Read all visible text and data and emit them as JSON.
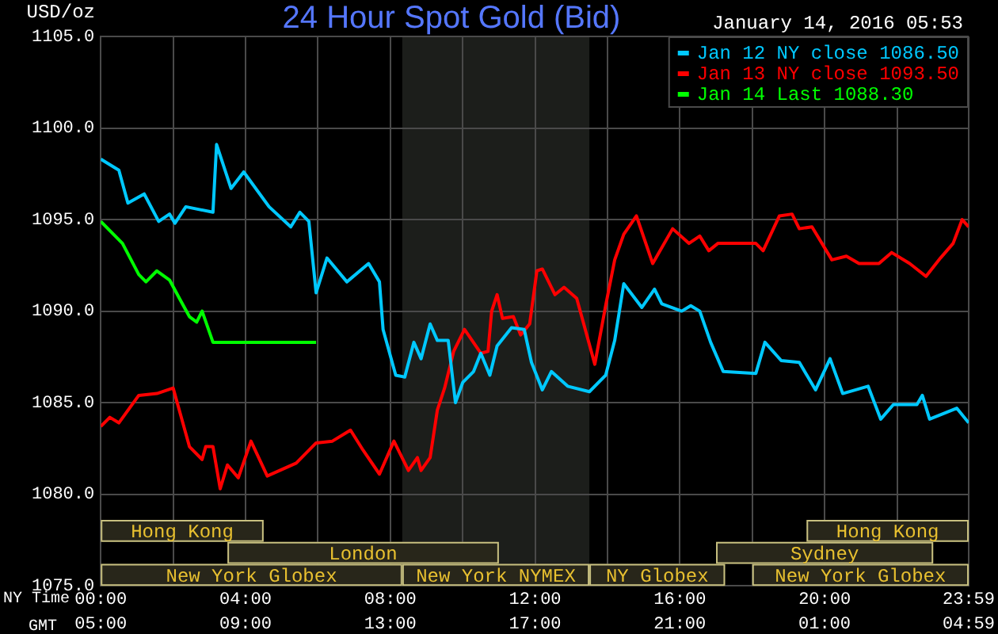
{
  "chart_data": {
    "type": "line",
    "title": "24 Hour Spot Gold (Bid)",
    "subtitle": "January 14, 2016 05:53",
    "ylabel": "USD/oz",
    "xlabel": "NY Time",
    "x2label": "GMT",
    "xlim": [
      0,
      23.98
    ],
    "ylim": [
      1075,
      1105
    ],
    "xticks": [
      {
        "value": 0,
        "label": "00:00"
      },
      {
        "value": 2,
        "label": null
      },
      {
        "value": 4,
        "label": "04:00"
      },
      {
        "value": 6,
        "label": null
      },
      {
        "value": 8,
        "label": "08:00"
      },
      {
        "value": 10,
        "label": null
      },
      {
        "value": 12,
        "label": "12:00"
      },
      {
        "value": 14,
        "label": null
      },
      {
        "value": 16,
        "label": "16:00"
      },
      {
        "value": 18,
        "label": null
      },
      {
        "value": 20,
        "label": "20:00"
      },
      {
        "value": 22,
        "label": null
      },
      {
        "value": 23.98,
        "label": "23:59"
      }
    ],
    "x2lim": [
      "2016-01-14T05:00",
      "2016-01-15T04:59"
    ],
    "x2ticks": [
      {
        "value": "2016-01-14T05:00",
        "label": "05:00"
      },
      {
        "value": "2016-01-14T09:00",
        "label": "09:00"
      },
      {
        "value": "2016-01-14T13:00",
        "label": "13:00"
      },
      {
        "value": "2016-01-14T17:00",
        "label": "17:00"
      },
      {
        "value": "2016-01-14T21:00",
        "label": "21:00"
      },
      {
        "value": "2016-01-15T01:00",
        "label": "01:00"
      },
      {
        "value": "2016-01-15T04:59",
        "label": "04:59"
      }
    ],
    "yticks": [
      {
        "value": 1075,
        "label": "1075.0"
      },
      {
        "value": 1080,
        "label": "1080.0"
      },
      {
        "value": 1085,
        "label": "1085.0"
      },
      {
        "value": 1090,
        "label": "1090.0"
      },
      {
        "value": 1095,
        "label": "1095.0"
      },
      {
        "value": 1100,
        "label": "1100.0"
      },
      {
        "value": 1105,
        "label": "1105.0"
      }
    ],
    "grid": true,
    "legend": "top right",
    "marker": "none",
    "line_style": "solid",
    "bands": [
      {
        "axis": "x",
        "from": 8.33,
        "to": 13.5,
        "color": "#1c1e1b"
      },
      {
        "axis": "x",
        "from": 0,
        "to": 4.5,
        "label": "Hong Kong",
        "color": "#c8c080"
      },
      {
        "axis": "x",
        "from": 19.5,
        "to": 23.98,
        "label": "Hong Kong",
        "color": "#c8c080"
      },
      {
        "axis": "x",
        "from": 3.5,
        "to": 11,
        "label": "London",
        "color": "#c8c080"
      },
      {
        "axis": "x",
        "from": 17,
        "to": 23,
        "label": "Sydney",
        "color": "#c8c080"
      },
      {
        "axis": "x",
        "from": 0,
        "to": 8.33,
        "label": "New York Globex",
        "color": "#c8c080"
      },
      {
        "axis": "x",
        "from": 8.33,
        "to": 13.5,
        "label": "New York NYMEX",
        "color": "#c8c080"
      },
      {
        "axis": "x",
        "from": 13.5,
        "to": 17.25,
        "label": "NY Globex",
        "color": "#c8c080"
      },
      {
        "axis": "x",
        "from": 18,
        "to": 23.98,
        "label": "New York Globex",
        "color": "#c8c080"
      }
    ],
    "series": [
      {
        "name": "Jan 12 NY close 1086.50",
        "color": "#00c8ff",
        "x": [
          0,
          0.5,
          0.75,
          1.2,
          1.6,
          1.9,
          2.05,
          2.35,
          3.1,
          3.2,
          3.6,
          3.95,
          4.65,
          5.25,
          5.5,
          5.75,
          5.95,
          6.25,
          6.8,
          7.4,
          7.7,
          7.8,
          8.15,
          8.4,
          8.65,
          8.85,
          9.1,
          9.3,
          9.6,
          9.8,
          10,
          10.3,
          10.5,
          10.75,
          10.95,
          11.35,
          11.7,
          11.9,
          12.2,
          12.45,
          12.9,
          13.5,
          13.95,
          14.2,
          14.45,
          14.95,
          15.3,
          15.5,
          16.05,
          16.3,
          16.55,
          16.85,
          17.2,
          18.1,
          18.35,
          18.8,
          19.3,
          19.75,
          20.15,
          20.5,
          21.2,
          21.55,
          21.9,
          22.55,
          22.7,
          22.9,
          23.65,
          23.98
        ],
        "values": [
          1098.3,
          1097.7,
          1095.9,
          1096.4,
          1094.9,
          1095.3,
          1094.8,
          1095.7,
          1095.4,
          1099.1,
          1096.7,
          1097.6,
          1095.7,
          1094.6,
          1095.4,
          1094.9,
          1091,
          1092.9,
          1091.6,
          1092.6,
          1091.6,
          1089,
          1086.5,
          1086.4,
          1088.3,
          1087.4,
          1089.3,
          1088.4,
          1088.4,
          1085,
          1086.1,
          1086.7,
          1087.7,
          1086.5,
          1088.1,
          1089.1,
          1089,
          1087.2,
          1085.7,
          1086.7,
          1085.9,
          1085.6,
          1086.5,
          1088.4,
          1091.5,
          1090.2,
          1091.2,
          1090.4,
          1090,
          1090.3,
          1090,
          1088.3,
          1086.7,
          1086.6,
          1088.3,
          1087.3,
          1087.2,
          1085.7,
          1087.4,
          1085.5,
          1085.9,
          1084.1,
          1084.9,
          1084.9,
          1085.4,
          1084.1,
          1084.7,
          1083.9
        ]
      },
      {
        "name": "Jan 13 NY close 1093.50",
        "color": "#ff0000",
        "x": [
          0,
          0.25,
          0.5,
          1.05,
          1.55,
          2,
          2.45,
          2.8,
          2.9,
          3.1,
          3.3,
          3.5,
          3.8,
          4.15,
          4.6,
          5.4,
          5.95,
          6.4,
          6.9,
          7.25,
          7.7,
          8.1,
          8.5,
          8.75,
          8.85,
          9.1,
          9.3,
          9.5,
          9.75,
          10.05,
          10.5,
          10.7,
          10.8,
          10.95,
          11.1,
          11.4,
          11.6,
          11.85,
          12.05,
          12.2,
          12.55,
          12.8,
          13.15,
          13.65,
          13.95,
          14.2,
          14.45,
          14.8,
          15.25,
          15.8,
          16.25,
          16.55,
          16.8,
          17.05,
          18.1,
          18.3,
          18.75,
          19.1,
          19.3,
          19.65,
          20.2,
          20.6,
          20.95,
          21.5,
          21.85,
          22.35,
          22.8,
          23.2,
          23.55,
          23.8,
          23.98
        ],
        "values": [
          1083.7,
          1084.2,
          1083.9,
          1085.4,
          1085.5,
          1085.8,
          1082.6,
          1081.9,
          1082.6,
          1082.6,
          1080.3,
          1081.6,
          1080.9,
          1082.9,
          1081,
          1081.7,
          1082.8,
          1082.9,
          1083.5,
          1082.4,
          1081.1,
          1082.9,
          1081.3,
          1082,
          1081.3,
          1082,
          1084.6,
          1085.8,
          1087.8,
          1089,
          1087.7,
          1087.8,
          1090,
          1090.9,
          1089.6,
          1089.7,
          1088.7,
          1089.3,
          1092.2,
          1092.3,
          1090.9,
          1091.3,
          1090.7,
          1087.1,
          1090.3,
          1092.8,
          1094.2,
          1095.2,
          1092.6,
          1094.5,
          1093.7,
          1094.1,
          1093.3,
          1093.7,
          1093.7,
          1093.3,
          1095.2,
          1095.3,
          1094.5,
          1094.6,
          1092.8,
          1093,
          1092.6,
          1092.6,
          1093.2,
          1092.6,
          1091.9,
          1092.9,
          1093.7,
          1095,
          1094.6
        ]
      },
      {
        "name": "Jan 14 Last 1088.30",
        "color": "#00ff00",
        "x": [
          0,
          0.6,
          1.05,
          1.25,
          1.55,
          1.9,
          2.2,
          2.45,
          2.65,
          2.8,
          3.1,
          5.95
        ],
        "values": [
          1094.9,
          1093.7,
          1092,
          1091.6,
          1092.2,
          1091.7,
          1090.6,
          1089.7,
          1089.4,
          1090,
          1088.3,
          1088.3
        ]
      }
    ]
  }
}
